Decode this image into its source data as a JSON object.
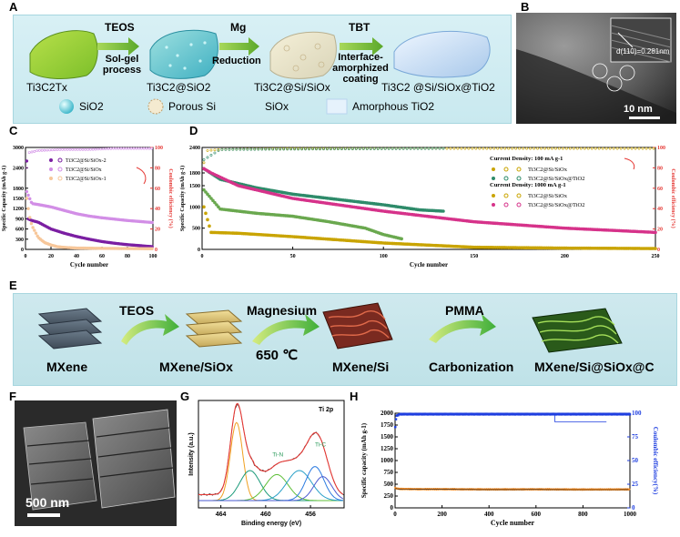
{
  "panels": {
    "A": "A",
    "B": "B",
    "C": "C",
    "D": "D",
    "E": "E",
    "F": "F",
    "G": "G",
    "H": "H"
  },
  "panelA": {
    "arrows": [
      {
        "top": "TEOS",
        "bottom": "Sol-gel\nprocess"
      },
      {
        "top": "Mg",
        "bottom": "Reduction"
      },
      {
        "top": "TBT",
        "bottom": "Interface-\namorphized\ncoating"
      }
    ],
    "stages": [
      "Ti3C2Tx",
      "Ti3C2@SiO2",
      "Ti3C2@Si/SiOx",
      "Ti3C2 @Si/SiOx@TiO2"
    ],
    "legend": [
      "SiO2",
      "Porous Si",
      "SiOx",
      "Amorphous TiO2"
    ]
  },
  "panelB": {
    "d_label": "d(110)=0.281nm",
    "scale": "10 nm"
  },
  "panelE": {
    "steps": [
      "TEOS",
      "Magnesium",
      "650 ℃",
      "PMMA"
    ],
    "stages": [
      "MXene",
      "MXene/SiOx",
      "MXene/Si",
      "Carbonization",
      "MXene/Si@SiOx@C"
    ]
  },
  "panelF": {
    "scale": "500 nm"
  },
  "colors": {
    "purple": "#7b1fa2",
    "violet": "#d28ee6",
    "peach": "#f7c79a",
    "red": "#e53935",
    "gold": "#c9a400",
    "teal": "#2e8b6a",
    "magenta": "#d6338a",
    "blue": "#1f3fe0",
    "orange": "#f08a24"
  },
  "chart_data": [
    {
      "id": "C",
      "type": "scatter",
      "xlabel": "Cycle number",
      "ylabel": "Specific Capacity (mAh g-1)",
      "y2label": "Coulombic efficiency (%)",
      "xlim": [
        0,
        100
      ],
      "ylim": [
        0,
        3000
      ],
      "y2lim": [
        0,
        100
      ],
      "xticks": [
        0,
        20,
        40,
        60,
        80,
        100
      ],
      "yticks": [
        0,
        300,
        600,
        900,
        1200,
        1500,
        1800,
        2400,
        3000
      ],
      "y2ticks": [
        0,
        20,
        40,
        60,
        80,
        100
      ],
      "legend": [
        "Ti3C2@Si/SiOx-2",
        "Ti3C2@Si/SiOx",
        "Ti3C2@Si/SiOx-1"
      ],
      "series": [
        {
          "name": "Ti3C2@Si/SiOx-2",
          "x": [
            1,
            2,
            5,
            10,
            15,
            20,
            30,
            40,
            50,
            60,
            70,
            80,
            90,
            100
          ],
          "y": [
            2600,
            900,
            850,
            800,
            700,
            600,
            480,
            380,
            300,
            230,
            180,
            140,
            110,
            80
          ]
        },
        {
          "name": "Ti3C2@Si/SiOx",
          "x": [
            1,
            5,
            10,
            20,
            30,
            40,
            50,
            60,
            70,
            80,
            90,
            100
          ],
          "y": [
            1700,
            1350,
            1320,
            1250,
            1150,
            1050,
            980,
            930,
            890,
            850,
            820,
            790
          ]
        },
        {
          "name": "Ti3C2@Si/SiOx-1",
          "x": [
            1,
            3,
            5,
            10,
            15,
            20,
            25,
            30,
            40,
            60,
            80,
            100
          ],
          "y": [
            1500,
            1000,
            700,
            350,
            200,
            130,
            80,
            60,
            40,
            30,
            25,
            20
          ]
        }
      ],
      "efficiency": {
        "x": [
          1,
          3,
          10,
          30,
          50,
          70,
          100
        ],
        "y": [
          80,
          95,
          97,
          98,
          98,
          99,
          99
        ]
      }
    },
    {
      "id": "D",
      "type": "scatter",
      "xlabel": "Cycle number",
      "ylabel": "Specific Capacity (mAh g-1)",
      "y2label": "Coulombic efficiency (%)",
      "xlim": [
        0,
        250
      ],
      "ylim": [
        0,
        2400
      ],
      "y2lim": [
        0,
        100
      ],
      "xticks": [
        0,
        50,
        100,
        150,
        200,
        250
      ],
      "yticks": [
        0,
        500,
        1000,
        1500,
        1800,
        2400
      ],
      "y2ticks": [
        0,
        20,
        40,
        60,
        80,
        100
      ],
      "legend_header_1": "Current Density: 100 mA g-1",
      "legend_header_2": "Current Density: 1000 mA g-1",
      "legend": [
        "Ti3C2@Si/SiOx",
        "Ti3C2@Si/SiOx@TiO2",
        "Ti3C2@Si/SiOx",
        "Ti3C2@Si/SiOx@TiO2"
      ],
      "series": [
        {
          "name": "100 Ti3C2@Si/SiOx",
          "x": [
            1,
            10,
            30,
            50,
            70,
            90,
            100,
            110
          ],
          "y": [
            1400,
            950,
            850,
            780,
            650,
            500,
            350,
            250
          ]
        },
        {
          "name": "100 Ti3C2@Si/SiOx@TiO2",
          "x": [
            1,
            10,
            30,
            50,
            80,
            100,
            120,
            133
          ],
          "y": [
            1900,
            1650,
            1450,
            1300,
            1150,
            1050,
            930,
            900
          ]
        },
        {
          "name": "1000 Ti3C2@Si/SiOx",
          "x": [
            1,
            5,
            20,
            50,
            100,
            150,
            200,
            250
          ],
          "y": [
            1000,
            400,
            380,
            300,
            150,
            50,
            30,
            20
          ]
        },
        {
          "name": "1000 Ti3C2@Si/SiOx@TiO2",
          "x": [
            1,
            5,
            20,
            50,
            100,
            150,
            200,
            250
          ],
          "y": [
            1900,
            1800,
            1500,
            1200,
            900,
            650,
            500,
            400
          ]
        }
      ],
      "efficiency": {
        "x": [
          1,
          3,
          10,
          50,
          100,
          150,
          200,
          250
        ],
        "y": [
          85,
          97,
          98,
          99,
          99,
          99,
          99,
          99
        ]
      }
    },
    {
      "id": "G",
      "type": "line",
      "title": "Ti 2p",
      "xlabel": "Binding energy (eV)",
      "ylabel": "Intensity (a.u.)",
      "xlim": [
        466,
        453
      ],
      "xticks": [
        464,
        460,
        456
      ],
      "annotations": [
        "Ti-N",
        "Ti-C"
      ]
    },
    {
      "id": "H",
      "type": "scatter",
      "xlabel": "Cycle number",
      "ylabel": "Specific capacity (mAh g-1)",
      "y2label": "Coulombic efficiency(%)",
      "xlim": [
        0,
        1000
      ],
      "ylim": [
        0,
        2000
      ],
      "y2lim": [
        0,
        100
      ],
      "xticks": [
        0,
        200,
        400,
        600,
        800,
        1000
      ],
      "yticks": [
        0,
        250,
        500,
        750,
        1000,
        1250,
        1500,
        1750,
        2000
      ],
      "y2ticks": [
        0,
        25,
        50,
        75,
        100
      ],
      "series": [
        {
          "name": "Specific capacity",
          "x": [
            1,
            5,
            20,
            100,
            200,
            400,
            600,
            800,
            1000
          ],
          "y": [
            420,
            410,
            400,
            395,
            395,
            390,
            392,
            388,
            390
          ]
        }
      ],
      "efficiency": {
        "x": [
          1,
          5,
          20,
          50,
          200,
          600,
          1000
        ],
        "y": [
          85,
          97,
          99,
          99,
          99,
          99,
          99
        ]
      }
    }
  ]
}
